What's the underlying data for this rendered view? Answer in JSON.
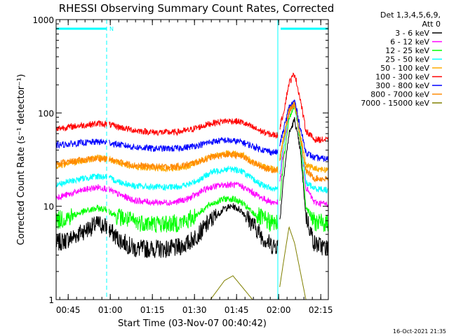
{
  "chart_data": {
    "type": "line",
    "title": "RHESSI Observing Summary Count Rates, Corrected",
    "xlabel": "Start Time (03-Nov-07 00:40:42)",
    "ylabel": "Corrected Count Rate (s⁻¹ detector⁻¹)",
    "yscale": "log",
    "ylim": [
      1,
      1000
    ],
    "xlim_minutes": [
      0,
      97
    ],
    "x_ticks": [
      {
        "t": 4.3,
        "label": "00:45"
      },
      {
        "t": 19.3,
        "label": "01:00"
      },
      {
        "t": 34.3,
        "label": "01:15"
      },
      {
        "t": 49.3,
        "label": "01:30"
      },
      {
        "t": 64.3,
        "label": "01:45"
      },
      {
        "t": 79.3,
        "label": "02:00"
      },
      {
        "t": 94.3,
        "label": "02:15"
      }
    ],
    "y_ticks": [
      {
        "v": 1,
        "label": "1"
      },
      {
        "v": 10,
        "label": "10"
      },
      {
        "v": 100,
        "label": "100"
      },
      {
        "v": 1000,
        "label": "1000"
      }
    ],
    "legend_header": [
      "Det 1,3,4,5,6,9,",
      "Att 0"
    ],
    "legend_position": "right",
    "markers": {
      "night_marker": "N",
      "cyan_bars": [
        [
          0,
          18
        ],
        [
          80,
          97
        ]
      ],
      "dashed_lines_minutes": [
        18,
        97
      ],
      "solid_lines_minutes": [
        0,
        79
      ]
    },
    "series_x_minutes": [
      0,
      5,
      10,
      15,
      18,
      22,
      28,
      35,
      42,
      47,
      52,
      55,
      60,
      63,
      66,
      70,
      74,
      77,
      79,
      81,
      83,
      85,
      87,
      89,
      92,
      97
    ],
    "series": [
      {
        "name": "3 - 6 keV",
        "color": "#000000",
        "values": [
          4.0,
          4.5,
          5.5,
          6.5,
          6.0,
          4.5,
          3.5,
          3.5,
          3.5,
          4.0,
          5.5,
          7.0,
          9.5,
          10.0,
          9.0,
          6.5,
          4.5,
          3.8,
          3.8,
          20,
          60,
          85,
          40,
          8,
          4.0,
          3.5
        ]
      },
      {
        "name": "6 - 12 keV",
        "color": "#ff00ff",
        "values": [
          12.5,
          13.5,
          15,
          16,
          15.5,
          13.5,
          11.5,
          11.0,
          11.0,
          12.0,
          14.5,
          16.0,
          17.0,
          17.0,
          16.5,
          14.0,
          12.0,
          11.0,
          11.0,
          40,
          100,
          130,
          55,
          16,
          11.0,
          10.5
        ]
      },
      {
        "name": "12 - 25 keV",
        "color": "#00ff00",
        "values": [
          7.0,
          7.8,
          8.8,
          9.5,
          9.2,
          7.8,
          6.8,
          6.5,
          6.5,
          7.0,
          9.0,
          10.5,
          12.0,
          12.0,
          11.0,
          8.5,
          7.2,
          6.6,
          6.6,
          30,
          90,
          120,
          50,
          10,
          6.8,
          6.5
        ]
      },
      {
        "name": "25 - 50 keV",
        "color": "#00ffff",
        "values": [
          17,
          18.5,
          20,
          21,
          20.5,
          18.5,
          16.5,
          16,
          16,
          17,
          20,
          23,
          25,
          25,
          24,
          19.5,
          16.5,
          15.5,
          15.5,
          45,
          105,
          125,
          55,
          18,
          15.5,
          15
        ]
      },
      {
        "name": "50 - 100 keV",
        "color": "#ffaa00",
        "values": [
          27,
          29,
          31,
          33,
          32.5,
          29.5,
          26.5,
          25.5,
          25.5,
          27,
          31,
          34,
          37,
          37,
          36,
          30,
          26.5,
          25,
          25,
          55,
          110,
          130,
          60,
          28,
          25.5,
          24.5
        ]
      },
      {
        "name": "100 - 300 keV",
        "color": "#ff0000",
        "values": [
          68,
          71,
          74,
          77,
          76,
          71,
          65,
          62,
          62,
          65,
          72,
          77,
          82,
          82,
          80,
          70,
          62,
          58,
          58,
          100,
          210,
          265,
          140,
          65,
          52,
          51
        ]
      },
      {
        "name": "300 - 800 keV",
        "color": "#0000ff",
        "values": [
          45,
          46.5,
          48,
          49,
          48.5,
          46,
          43,
          41.5,
          41.5,
          43,
          46,
          49,
          51,
          50,
          49,
          44,
          40,
          38,
          38,
          65,
          115,
          135,
          70,
          38,
          33,
          32
        ]
      },
      {
        "name": "800 - 7000 keV",
        "color": "#ff8800",
        "values": [
          29,
          30,
          31.5,
          32.5,
          32,
          30,
          27.5,
          26.5,
          26.5,
          28,
          31,
          33.5,
          35.5,
          35.5,
          34.5,
          29.5,
          26,
          24.5,
          24.5,
          50,
          105,
          125,
          55,
          24,
          20,
          19.5
        ]
      },
      {
        "name": "7000 - 15000 keV",
        "color": "#808000",
        "values": [
          1,
          1,
          1,
          1,
          1,
          1,
          1,
          1,
          1,
          1,
          1,
          1,
          1.6,
          1.8,
          1.4,
          1,
          1,
          1,
          1,
          2.5,
          6,
          4,
          2,
          1,
          1,
          1
        ]
      }
    ]
  },
  "legend_labels": [
    "3 - 6 keV",
    "6 - 12 keV",
    "12 - 25 keV",
    "25 - 50 keV",
    "50 - 100 keV",
    "100 - 300 keV",
    "300 - 800 keV",
    "800 - 7000 keV",
    "7000 - 15000 keV"
  ],
  "timestamp": "16-Oct-2021 21:35"
}
